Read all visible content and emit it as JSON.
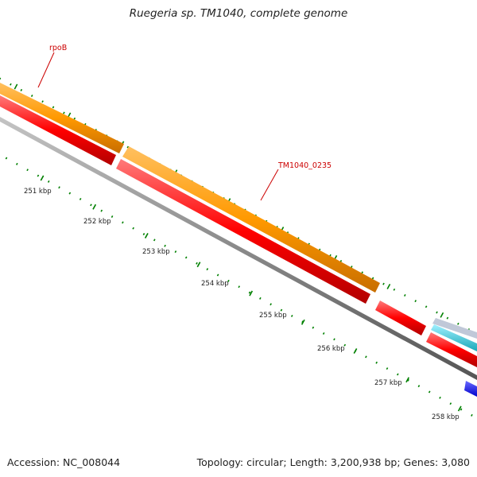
{
  "title": "Ruegeria sp. TM1040, complete genome",
  "footer": {
    "accession": "Accession: NC_008044",
    "summary": "Topology: circular; Length: 3,200,938 bp; Genes: 3,080"
  },
  "gene_labels": [
    {
      "name": "rpoB"
    },
    {
      "name": "TM1040_0235"
    }
  ],
  "kbp_labels": [
    "251 kbp",
    "252 kbp",
    "253 kbp",
    "254 kbp",
    "255 kbp",
    "256 kbp",
    "257 kbp",
    "258 kbp"
  ],
  "colors": {
    "background": "#ffffff",
    "label_red": "#cc0000",
    "tick_green": "#008000",
    "gene_orange": "#ff9900",
    "gene_red": "#ff0000",
    "backbone_gray": "#808080",
    "rna_cyan": "#22c0d0",
    "gene_blue": "#0000ff"
  }
}
